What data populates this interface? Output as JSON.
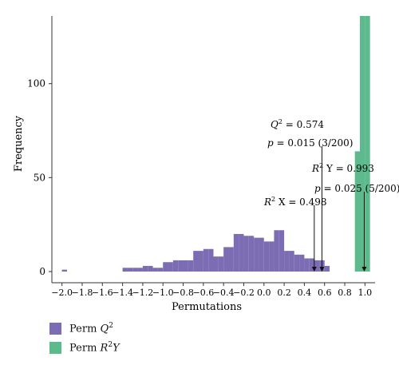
{
  "chart_data": {
    "type": "bar",
    "xlabel": "Permutations",
    "ylabel": "Frequency",
    "xlim": [
      -2.1,
      1.1
    ],
    "ylim": [
      0,
      136
    ],
    "x_ticks": [
      -2.0,
      -1.8,
      -1.6,
      -1.4,
      -1.2,
      -1.0,
      -0.8,
      -0.6,
      -0.4,
      -0.2,
      0.0,
      0.2,
      0.4,
      0.6,
      0.8,
      1.0
    ],
    "x_tick_labels": [
      "−2.0",
      "−1.8",
      "−1.6",
      "−1.4",
      "−1.2",
      "−1.0",
      "−0.8",
      "−0.6",
      "−0.4",
      "−0.2",
      "0.0",
      "0.2",
      "0.4",
      "0.6",
      "0.8",
      "1.0"
    ],
    "y_ticks": [
      0,
      50,
      100
    ],
    "y_tick_labels": [
      "0",
      "50",
      "100"
    ],
    "grid": false,
    "legend_position": "bottom-left",
    "series": [
      {
        "name": "Perm Q2",
        "color": "#7b6cb3",
        "bin_width": 0.05,
        "bin_centers": [
          -1.975,
          -1.375,
          -1.325,
          -1.275,
          -1.225,
          -1.175,
          -1.125,
          -1.075,
          -1.025,
          -0.975,
          -0.925,
          -0.875,
          -0.825,
          -0.775,
          -0.725,
          -0.675,
          -0.625,
          -0.575,
          -0.525,
          -0.475,
          -0.425,
          -0.375,
          -0.325,
          -0.275,
          -0.225,
          -0.175,
          -0.125,
          -0.075,
          -0.025,
          0.025,
          0.075,
          0.125,
          0.175,
          0.225,
          0.275,
          0.325,
          0.375,
          0.425,
          0.475,
          0.525,
          0.575,
          0.625
        ],
        "values": [
          1,
          2,
          2,
          2,
          2,
          3,
          3,
          2,
          2,
          5,
          5,
          6,
          6,
          6,
          6,
          11,
          11,
          12,
          12,
          8,
          8,
          13,
          13,
          20,
          20,
          19,
          19,
          18,
          18,
          16,
          16,
          22,
          22,
          11,
          11,
          9,
          9,
          7,
          7,
          6,
          6,
          3
        ]
      },
      {
        "name": "Perm R2Y",
        "color": "#5cba8c",
        "bin_width": 0.05,
        "bin_centers": [
          0.925,
          0.975,
          1.025
        ],
        "values": [
          64,
          136,
          136
        ]
      }
    ],
    "annotations": [
      {
        "id": "q2",
        "label_parts": [
          "Q",
          "2",
          " = 0.574"
        ],
        "p_text": "p",
        "p_value": " = 0.015 (3/200)",
        "x": 0.574
      },
      {
        "id": "r2y",
        "label_parts": [
          "R",
          "2",
          " Y = 0.993"
        ],
        "p_text": "p",
        "p_value": " = 0.025 (5/200)",
        "x": 0.993
      },
      {
        "id": "r2x",
        "label_parts": [
          "R",
          "2",
          " X = 0.498"
        ],
        "x": 0.498
      }
    ]
  },
  "legend": [
    {
      "label_base": "Perm ",
      "label_ital": "Q",
      "label_sup": "2",
      "label_tail": "",
      "color": "#7b6cb3"
    },
    {
      "label_base": "Perm ",
      "label_ital": "R",
      "label_sup": "2",
      "label_tail": "Y",
      "color": "#5cba8c"
    }
  ]
}
